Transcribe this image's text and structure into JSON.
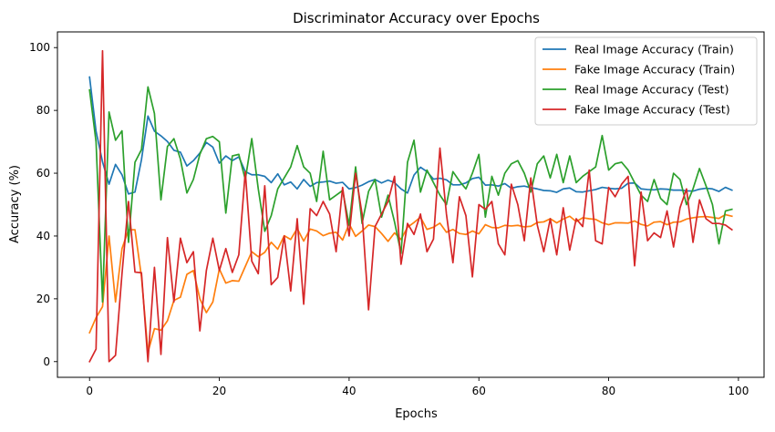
{
  "chart_data": {
    "type": "line",
    "title": "Discriminator Accuracy over Epochs",
    "xlabel": "Epochs",
    "ylabel": "Accuracy (%)",
    "xlim": [
      -4.95,
      103.95
    ],
    "ylim": [
      -5,
      105
    ],
    "xticks": [
      0,
      20,
      40,
      60,
      80,
      100
    ],
    "yticks": [
      0,
      20,
      40,
      60,
      80,
      100
    ],
    "grid": false,
    "legend_position": "top-right",
    "series": [
      {
        "name": "Real Image Accuracy (Train)",
        "color": "#1f77b4",
        "values": [
          90.6,
          73.4,
          63.6,
          56.5,
          62.8,
          59.5,
          53.4,
          54.0,
          64.3,
          78.2,
          73.4,
          71.9,
          70.1,
          67.3,
          66.7,
          62.3,
          64.0,
          66.4,
          69.8,
          68.3,
          63.2,
          65.5,
          64.0,
          65.2,
          60.5,
          59.5,
          59.5,
          59.0,
          57.0,
          59.8,
          56.3,
          57.2,
          55.0,
          58.0,
          55.8,
          57.0,
          57.2,
          57.5,
          56.8,
          57.1,
          55.0,
          55.4,
          56.2,
          57.3,
          58.0,
          56.9,
          57.8,
          57.0,
          55.0,
          53.7,
          59.4,
          61.9,
          60.5,
          58.1,
          58.4,
          57.9,
          56.3,
          56.3,
          56.9,
          58.3,
          58.7,
          56.2,
          56.3,
          55.9,
          56.7,
          55.2,
          55.7,
          55.9,
          55.4,
          55.0,
          54.5,
          54.4,
          53.9,
          55.0,
          55.3,
          54.1,
          54.0,
          54.4,
          54.8,
          55.5,
          55.2,
          55.0,
          55.2,
          56.8,
          56.9,
          55.0,
          54.8,
          54.7,
          55.0,
          54.9,
          54.6,
          54.6,
          54.4,
          54.3,
          54.9,
          55.2,
          55.0,
          54.2,
          55.5,
          54.6
        ]
      },
      {
        "name": "Fake Image Accuracy (Train)",
        "color": "#ff7f0e",
        "values": [
          9.2,
          14.0,
          17.5,
          40.0,
          19.0,
          36.0,
          42.0,
          42.0,
          27.0,
          3.0,
          10.5,
          10.0,
          13.0,
          19.5,
          20.5,
          27.8,
          29.0,
          20.0,
          15.6,
          19.0,
          29.5,
          25.0,
          25.8,
          25.6,
          30.3,
          35.0,
          33.4,
          34.8,
          38.0,
          35.8,
          40.1,
          38.9,
          42.4,
          38.4,
          42.2,
          41.6,
          40.1,
          40.9,
          41.2,
          38.7,
          43.9,
          39.9,
          41.6,
          43.5,
          43.0,
          40.8,
          38.3,
          41.0,
          38.9,
          42.8,
          44.3,
          46.0,
          42.1,
          42.8,
          44.1,
          41.2,
          42.1,
          40.8,
          40.5,
          41.6,
          40.7,
          43.6,
          42.7,
          42.6,
          43.4,
          43.2,
          43.4,
          42.9,
          43.1,
          44.3,
          44.5,
          45.5,
          44.2,
          45.4,
          46.3,
          44.6,
          45.8,
          45.5,
          45.3,
          44.2,
          43.6,
          44.2,
          44.2,
          44.1,
          44.8,
          43.7,
          43.2,
          44.4,
          44.6,
          43.6,
          44.4,
          44.5,
          45.4,
          45.8,
          46.1,
          46.2,
          45.9,
          45.6,
          46.8,
          46.3
        ]
      },
      {
        "name": "Real Image Accuracy (Test)",
        "color": "#2ca02c",
        "values": [
          86.5,
          70.0,
          19.0,
          79.5,
          70.5,
          73.5,
          38.0,
          63.5,
          67.5,
          87.5,
          79.0,
          51.5,
          68.5,
          71.0,
          64.5,
          53.7,
          58.0,
          66.0,
          71.0,
          71.7,
          70.0,
          47.3,
          65.5,
          66.0,
          58.0,
          71.0,
          55.0,
          41.5,
          46.5,
          55.0,
          58.5,
          62.0,
          68.8,
          62.0,
          60.0,
          51.0,
          67.0,
          51.5,
          53.0,
          54.5,
          43.5,
          62.0,
          44.0,
          54.2,
          58.0,
          46.0,
          53.0,
          44.5,
          34.5,
          63.5,
          70.5,
          54.0,
          61.0,
          57.0,
          53.0,
          50.0,
          60.5,
          57.5,
          55.0,
          60.0,
          66.0,
          46.0,
          59.0,
          53.0,
          60.0,
          63.0,
          64.0,
          60.0,
          54.0,
          63.0,
          65.5,
          58.5,
          66.0,
          57.0,
          65.5,
          57.0,
          59.0,
          60.5,
          62.0,
          72.0,
          61.0,
          63.0,
          63.5,
          61.0,
          57.0,
          53.0,
          51.0,
          58.0,
          52.0,
          50.0,
          60.0,
          58.0,
          50.0,
          55.0,
          61.5,
          56.0,
          50.0,
          37.5,
          48.0,
          48.5
        ]
      },
      {
        "name": "Fake Image Accuracy (Test)",
        "color": "#d62728",
        "values": [
          0.0,
          4.0,
          99.0,
          0.0,
          2.0,
          28.0,
          51.0,
          28.5,
          28.3,
          0.0,
          30.0,
          2.3,
          39.5,
          19.0,
          39.3,
          31.5,
          35.0,
          9.8,
          29.0,
          39.3,
          29.0,
          36.0,
          28.4,
          34.0,
          60.5,
          32.0,
          28.0,
          56.0,
          24.5,
          26.8,
          40.0,
          22.5,
          45.5,
          18.3,
          48.7,
          46.5,
          51.0,
          47.0,
          35.0,
          55.5,
          40.0,
          60.0,
          47.0,
          16.5,
          43.0,
          47.0,
          51.0,
          59.0,
          31.0,
          44.0,
          40.5,
          47.0,
          35.0,
          39.0,
          68.0,
          47.0,
          31.5,
          52.5,
          46.5,
          27.0,
          50.0,
          48.5,
          51.0,
          37.5,
          34.0,
          56.5,
          50.0,
          38.5,
          58.5,
          43.5,
          35.0,
          45.5,
          34.0,
          49.0,
          35.5,
          45.5,
          43.0,
          61.0,
          38.5,
          37.5,
          55.5,
          52.5,
          56.5,
          59.0,
          30.5,
          54.0,
          38.5,
          41.0,
          39.5,
          48.0,
          36.5,
          49.0,
          55.0,
          38.0,
          51.5,
          45.5,
          44.0,
          44.0,
          43.5,
          42.0
        ]
      }
    ]
  }
}
